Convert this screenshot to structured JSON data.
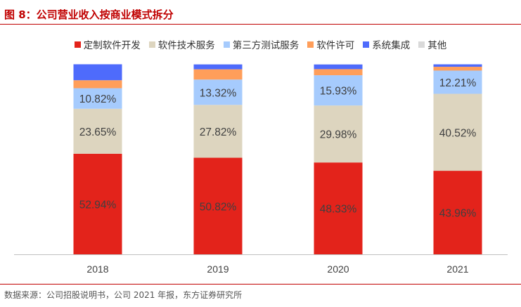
{
  "title": "图 8：公司营业收入按商业模式拆分",
  "source": "数据来源：公司招股说明书，公司 2021 年报，东方证券研究所",
  "chart_data": {
    "type": "bar",
    "stacked": true,
    "categories": [
      "2018",
      "2019",
      "2020",
      "2021"
    ],
    "ylim": [
      0,
      100
    ],
    "legend_position": "top",
    "grid": false,
    "series": [
      {
        "name": "定制软件开发",
        "color": "#e3231b",
        "values": [
          52.94,
          50.82,
          48.33,
          43.96
        ],
        "labels": [
          "52.94%",
          "50.82%",
          "48.33%",
          "43.96%"
        ]
      },
      {
        "name": "软件技术服务",
        "color": "#ddd5bf",
        "values": [
          23.65,
          27.82,
          29.98,
          40.52
        ],
        "labels": [
          "23.65%",
          "27.82%",
          "29.98%",
          "40.52%"
        ]
      },
      {
        "name": "第三方测试服务",
        "color": "#a6cbfd",
        "values": [
          10.82,
          13.32,
          15.93,
          12.21
        ],
        "labels": [
          "10.82%",
          "13.32%",
          "15.93%",
          "12.21%"
        ]
      },
      {
        "name": "软件许可",
        "color": "#ff9e5a",
        "values": [
          4.2,
          5.4,
          3.2,
          2.0
        ]
      },
      {
        "name": "系统集成",
        "color": "#4e6bfc",
        "values": [
          8.4,
          2.6,
          2.5,
          1.3
        ]
      },
      {
        "name": "其他",
        "color": "#d9d9d9",
        "values": [
          0,
          0.04,
          0.06,
          0.01
        ]
      }
    ]
  }
}
